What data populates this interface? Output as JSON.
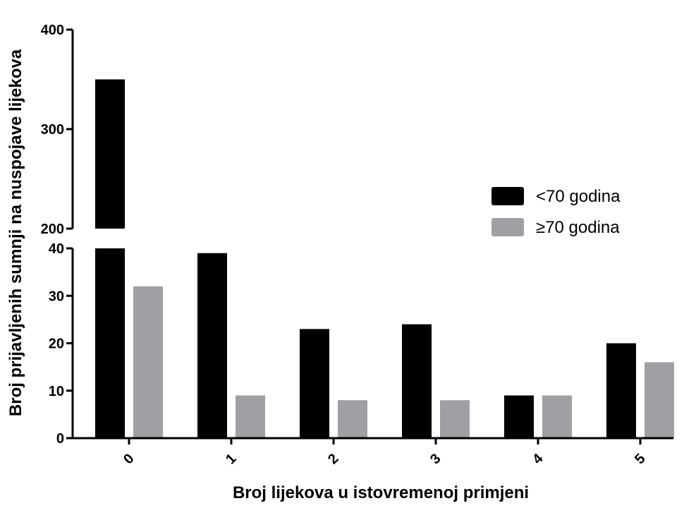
{
  "chart_data": {
    "type": "bar",
    "title": "",
    "xlabel": "Broj lijekova u istovremenoj primjeni",
    "ylabel": "Broj prijavljenih sumnji na nuspojave lijekova",
    "categories": [
      "0",
      "1",
      "2",
      "3",
      "4",
      "5"
    ],
    "series": [
      {
        "name": "<70 godina",
        "values": [
          350,
          39,
          23,
          24,
          9,
          20
        ],
        "color": "#000000"
      },
      {
        "name": "≥70 godina",
        "values": [
          32,
          9,
          8,
          8,
          9,
          16
        ],
        "color": "#a0a0a4"
      }
    ],
    "y_axis": {
      "broken": true,
      "lower_range": [
        0,
        40
      ],
      "upper_range": [
        200,
        400
      ],
      "lower_ticks": [
        0,
        10,
        20,
        30,
        40
      ],
      "upper_ticks": [
        200,
        300,
        400
      ]
    },
    "legend_position": "right",
    "grid": false
  }
}
